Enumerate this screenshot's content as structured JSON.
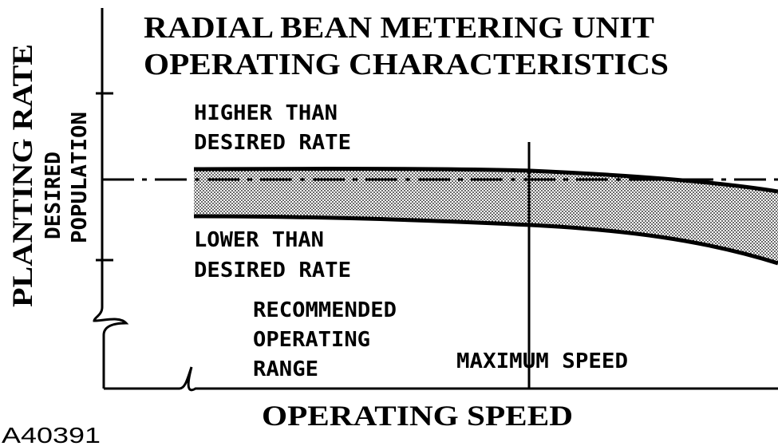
{
  "title": {
    "lines": [
      "RADIAL BEAN METERING UNIT",
      "OPERATING CHARACTERISTICS"
    ]
  },
  "y_axis": {
    "label": "PLANTING RATE",
    "sublabel": [
      "DESIRED",
      "POPULATION"
    ]
  },
  "annotations": {
    "higher": [
      "HIGHER THAN",
      "DESIRED RATE"
    ],
    "lower": [
      "LOWER THAN",
      "DESIRED RATE"
    ],
    "range": [
      "RECOMMENDED",
      "OPERATING",
      "RANGE"
    ],
    "max_speed": "MAXIMUM SPEED"
  },
  "x_axis": {
    "label": "OPERATING SPEED"
  },
  "figure_id": "A40391"
}
